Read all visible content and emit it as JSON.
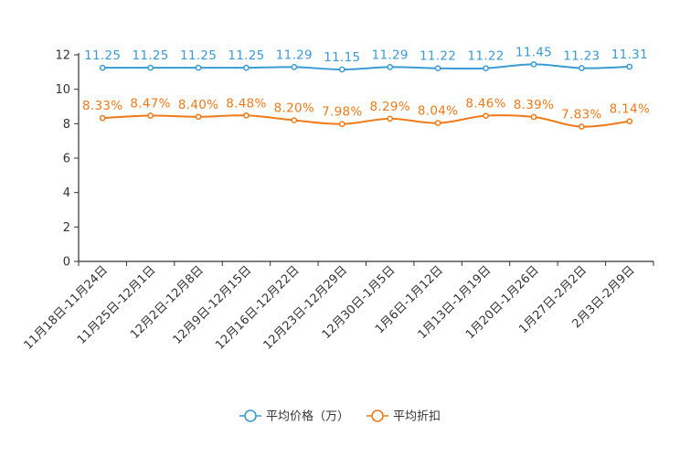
{
  "chart_data": {
    "type": "line",
    "title": "",
    "xlabel": "",
    "ylabel": "",
    "ylim": [
      0,
      12
    ],
    "yticks": [
      0,
      2,
      4,
      6,
      8,
      10,
      12
    ],
    "grid": false,
    "legend_position": "bottom-center",
    "categories": [
      "11月18日-11月24日",
      "11月25日-12月1日",
      "12月2日-12月8日",
      "12月9日-12月15日",
      "12月16日-12月22日",
      "12月23日-12月29日",
      "12月30日-1月5日",
      "1月6日-1月12日",
      "1月13日-1月19日",
      "1月20日-1月26日",
      "1月27日-2月2日",
      "2月3日-2月9日"
    ],
    "series": [
      {
        "name": "平均价格（万）",
        "color": "#3a9bd5",
        "values": [
          11.25,
          11.25,
          11.25,
          11.25,
          11.29,
          11.15,
          11.29,
          11.22,
          11.22,
          11.45,
          11.23,
          11.31
        ],
        "labels": [
          "11.25",
          "11.25",
          "11.25",
          "11.25",
          "11.29",
          "11.15",
          "11.29",
          "11.22",
          "11.22",
          "11.45",
          "11.23",
          "11.31"
        ]
      },
      {
        "name": "平均折扣",
        "color": "#f07a19",
        "values": [
          8.33,
          8.47,
          8.4,
          8.48,
          8.2,
          7.98,
          8.29,
          8.04,
          8.46,
          8.39,
          7.83,
          8.14
        ],
        "labels": [
          "8.33%",
          "8.47%",
          "8.40%",
          "8.48%",
          "8.20%",
          "7.98%",
          "8.29%",
          "8.04%",
          "8.46%",
          "8.39%",
          "7.83%",
          "8.14%"
        ]
      }
    ]
  }
}
